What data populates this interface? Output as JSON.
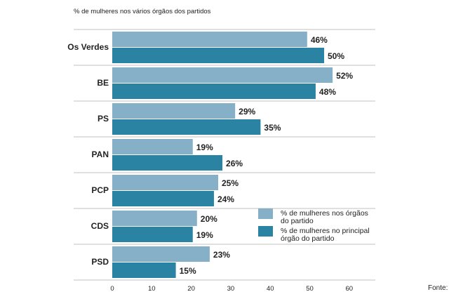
{
  "chart_data": {
    "type": "bar",
    "orientation": "horizontal",
    "title": "% de mulheres nos vários órgãos dos partidos",
    "categories": [
      "Os Verdes",
      "BE",
      "PS",
      "PAN",
      "PCP",
      "CDS",
      "PSD"
    ],
    "series": [
      {
        "name": "% de mulheres nos órgãos do partido",
        "legend_lines": [
          "% de mulheres nos órgãos",
          "do partido"
        ],
        "color": "#86b0c8",
        "values": [
          46,
          52,
          29,
          19,
          25,
          20,
          23
        ]
      },
      {
        "name": "% de mulheres no principal órgão do partido",
        "legend_lines": [
          "% de mulheres no principal",
          "órgão do partido"
        ],
        "color": "#2b83a3",
        "values": [
          50,
          48,
          35,
          26,
          24,
          19,
          15
        ]
      }
    ],
    "xticks": [
      0,
      10,
      20,
      30,
      40,
      50,
      60
    ],
    "xlim": [
      0,
      60
    ],
    "legend_position": "bottom-right",
    "value_suffix": "%"
  },
  "source_label": "Fonte:"
}
